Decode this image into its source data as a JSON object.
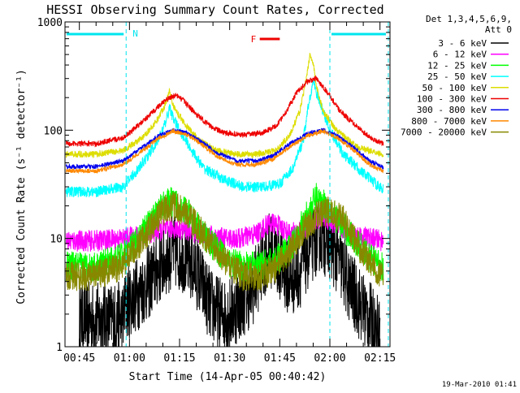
{
  "chart_data": {
    "type": "line",
    "title": "HESSI Observing Summary Count Rates, Corrected",
    "xlabel": "Start Time (14-Apr-05 00:40:42)",
    "ylabel": "Corrected Count Rate (s⁻¹ detector⁻¹)",
    "y_scale": "log",
    "ylim": [
      1,
      1000
    ],
    "xlim": [
      "00:40:42",
      "02:18:00"
    ],
    "y_ticks": [
      "1",
      "10",
      "100",
      "1000"
    ],
    "x_ticks": [
      "00:45",
      "01:00",
      "01:15",
      "01:30",
      "01:45",
      "02:00",
      "02:15"
    ],
    "legend_placement": "right",
    "legend_header": [
      "Det 1,3,4,5,6,9,",
      "Att 0"
    ],
    "footer": "19-Mar-2010 01:41",
    "annotations": {
      "night_markers": [
        {
          "label": "N",
          "x_start": "00:40:42",
          "x_end": "00:59:00"
        },
        {
          "label": "",
          "x_start": "02:00:00",
          "x_end": "02:17:30"
        }
      ],
      "flare_marker": {
        "label": "F",
        "x_start": "01:39:00",
        "x_end": "01:45:00"
      }
    },
    "series": [
      {
        "name": "3 - 6 keV",
        "color": "#000000",
        "x": [
          "00:45",
          "00:58",
          "00:59",
          "01:02",
          "01:06",
          "01:10",
          "01:13",
          "01:16",
          "01:20",
          "01:24",
          "01:27",
          "01:30",
          "01:33",
          "01:37",
          "01:40",
          "01:42",
          "01:45",
          "01:48",
          "01:51",
          "01:54",
          "01:57",
          "02:00",
          "02:03",
          "02:06",
          "02:09",
          "02:12",
          "02:15"
        ],
        "y": [
          1.8,
          1.8,
          2.5,
          3.0,
          4.0,
          6.0,
          7.5,
          7.0,
          5.0,
          2.5,
          2.0,
          2.0,
          2.5,
          3.5,
          6.0,
          8.0,
          6.0,
          4.0,
          5.0,
          8.0,
          11,
          9.0,
          6.0,
          3.5,
          2.5,
          1.8,
          1.3
        ]
      },
      {
        "name": "6 - 12 keV",
        "color": "#ff00ff",
        "x": [
          "00:41",
          "00:50",
          "00:58",
          "01:05",
          "01:10",
          "01:13",
          "01:17",
          "01:22",
          "01:28",
          "01:33",
          "01:38",
          "01:42",
          "01:45",
          "01:48",
          "01:52",
          "01:56",
          "01:58",
          "02:02",
          "02:07",
          "02:12",
          "02:16"
        ],
        "y": [
          9.5,
          9.5,
          10,
          11,
          12,
          12.5,
          12,
          11,
          10,
          10,
          11,
          14,
          13,
          11,
          12,
          15,
          16,
          13,
          11,
          10,
          9.5
        ]
      },
      {
        "name": "12 - 25 keV",
        "color": "#00ff00",
        "x": [
          "00:41",
          "00:50",
          "00:57",
          "01:02",
          "01:06",
          "01:10",
          "01:13",
          "01:17",
          "01:21",
          "01:26",
          "01:30",
          "01:34",
          "01:38",
          "01:43",
          "01:48",
          "01:52",
          "01:56",
          "01:59",
          "02:03",
          "02:07",
          "02:11",
          "02:16"
        ],
        "y": [
          5.5,
          5.5,
          6.5,
          9,
          14,
          20,
          22,
          18,
          12,
          8,
          6,
          5.5,
          5.5,
          6,
          8,
          14,
          24,
          20,
          14,
          10,
          7,
          5.5
        ]
      },
      {
        "name": "25 - 50 keV",
        "color": "#00ffff",
        "x": [
          "00:41",
          "00:50",
          "00:58",
          "01:03",
          "01:08",
          "01:11",
          "01:12",
          "01:13",
          "01:15",
          "01:18",
          "01:22",
          "01:28",
          "01:34",
          "01:40",
          "01:45",
          "01:49",
          "01:52",
          "01:54",
          "01:55",
          "01:57",
          "02:00",
          "02:04",
          "02:10",
          "02:16"
        ],
        "y": [
          27,
          27,
          30,
          45,
          75,
          120,
          165,
          130,
          100,
          70,
          45,
          35,
          30,
          30,
          32,
          45,
          80,
          200,
          280,
          180,
          100,
          60,
          40,
          28
        ]
      },
      {
        "name": "50 - 100 keV",
        "color": "#dddd00",
        "x": [
          "00:41",
          "00:50",
          "00:58",
          "01:04",
          "01:08",
          "01:11",
          "01:12",
          "01:13",
          "01:14",
          "01:17",
          "01:21",
          "01:26",
          "01:32",
          "01:38",
          "01:44",
          "01:48",
          "01:51",
          "01:53",
          "01:54",
          "01:55",
          "01:56",
          "01:58",
          "02:02",
          "02:08",
          "02:16"
        ],
        "y": [
          60,
          60,
          65,
          85,
          120,
          180,
          240,
          170,
          150,
          110,
          80,
          65,
          60,
          60,
          65,
          90,
          150,
          300,
          500,
          420,
          250,
          150,
          100,
          70,
          60
        ]
      },
      {
        "name": "100 - 300 keV",
        "color": "#ee0000",
        "x": [
          "00:41",
          "00:50",
          "00:58",
          "01:04",
          "01:09",
          "01:12",
          "01:14",
          "01:16",
          "01:20",
          "01:24",
          "01:28",
          "01:34",
          "01:40",
          "01:44",
          "01:47",
          "01:50",
          "01:53",
          "01:56",
          "01:59",
          "02:03",
          "02:08",
          "02:12",
          "02:16"
        ],
        "y": [
          75,
          75,
          85,
          120,
          170,
          200,
          210,
          190,
          140,
          110,
          95,
          90,
          95,
          110,
          150,
          220,
          280,
          300,
          230,
          150,
          110,
          85,
          75
        ]
      },
      {
        "name": "300 - 800 keV",
        "color": "#0000ee",
        "x": [
          "00:41",
          "00:50",
          "00:58",
          "01:04",
          "01:09",
          "01:13",
          "01:17",
          "01:21",
          "01:26",
          "01:32",
          "01:38",
          "01:43",
          "01:48",
          "01:53",
          "01:58",
          "02:02",
          "02:07",
          "02:12",
          "02:16"
        ],
        "y": [
          46,
          46,
          52,
          70,
          90,
          100,
          95,
          80,
          62,
          52,
          52,
          58,
          75,
          92,
          100,
          90,
          70,
          52,
          45
        ]
      },
      {
        "name": "800 - 7000 keV",
        "color": "#ff8800",
        "x": [
          "00:41",
          "00:50",
          "00:58",
          "01:04",
          "01:09",
          "01:13",
          "01:17",
          "01:21",
          "01:26",
          "01:32",
          "01:38",
          "01:43",
          "01:48",
          "01:53",
          "01:58",
          "02:02",
          "02:07",
          "02:12",
          "02:16"
        ],
        "y": [
          42,
          42,
          48,
          65,
          85,
          98,
          92,
          76,
          58,
          48,
          48,
          54,
          70,
          88,
          98,
          86,
          66,
          48,
          42
        ]
      },
      {
        "name": "7000 - 20000 keV",
        "color": "#888800",
        "x": [
          "00:41",
          "00:50",
          "00:57",
          "01:02",
          "01:06",
          "01:10",
          "01:13",
          "01:17",
          "01:21",
          "01:26",
          "01:30",
          "01:34",
          "01:38",
          "01:43",
          "01:48",
          "01:52",
          "01:56",
          "02:00",
          "02:04",
          "02:08",
          "02:12",
          "02:16"
        ],
        "y": [
          4.5,
          4.5,
          5.5,
          8,
          12,
          18,
          20,
          17,
          12,
          8,
          5.5,
          4.5,
          4.5,
          5,
          7.5,
          12,
          16,
          18,
          15,
          9,
          6,
          4.5
        ]
      }
    ]
  }
}
